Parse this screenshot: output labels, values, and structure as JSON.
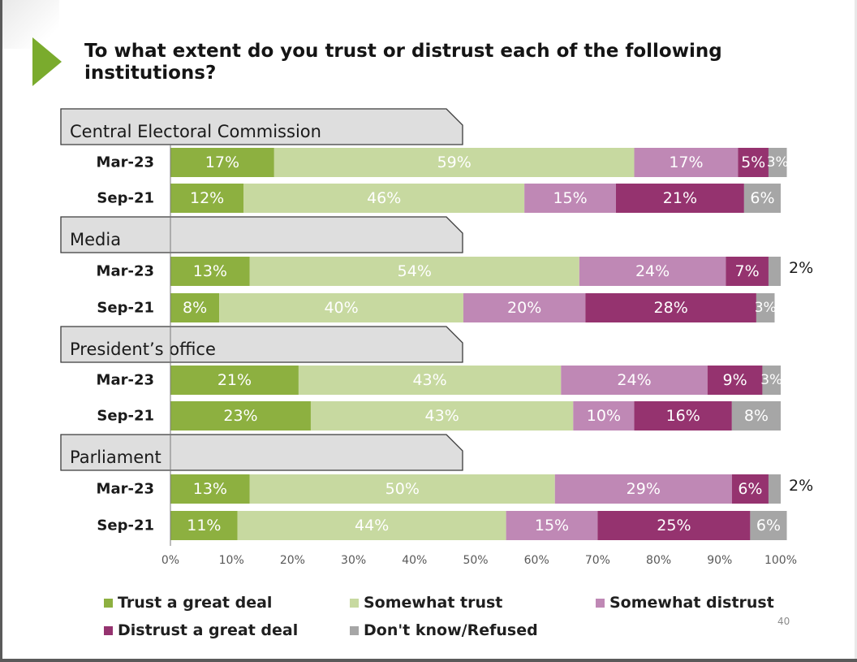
{
  "title": "To what extent do you trust or distrust each of the following institutions?",
  "page_number": "40",
  "colors": {
    "trust_great_deal": "#8db040",
    "somewhat_trust": "#c7d9a0",
    "somewhat_distrust": "#bf88b5",
    "distrust_great_deal": "#95336f",
    "dont_know": "#a6a6a6"
  },
  "chart_data": {
    "type": "bar",
    "orientation": "horizontal",
    "stacked": true,
    "xlim": [
      0,
      100
    ],
    "x_ticks": [
      "0%",
      "10%",
      "20%",
      "30%",
      "40%",
      "50%",
      "60%",
      "70%",
      "80%",
      "90%",
      "100%"
    ],
    "legend_placement": "bottom",
    "series": [
      {
        "name": "Trust a great deal",
        "color_key": "trust_great_deal"
      },
      {
        "name": "Somewhat trust",
        "color_key": "somewhat_trust"
      },
      {
        "name": "Somewhat distrust",
        "color_key": "somewhat_distrust"
      },
      {
        "name": "Distrust a great deal",
        "color_key": "distrust_great_deal"
      },
      {
        "name": "Don't know/Refused",
        "color_key": "dont_know"
      }
    ],
    "groups": [
      {
        "name": "Central Electoral Commission",
        "rows": [
          {
            "label": "Mar-23",
            "values": [
              17,
              59,
              17,
              5,
              3
            ],
            "labels": [
              "17%",
              "59%",
              "17%",
              "5%",
              "3%"
            ]
          },
          {
            "label": "Sep-21",
            "values": [
              12,
              46,
              15,
              21,
              6
            ],
            "labels": [
              "12%",
              "46%",
              "15%",
              "21%",
              "6%"
            ]
          }
        ]
      },
      {
        "name": "Media",
        "rows": [
          {
            "label": "Mar-23",
            "values": [
              13,
              54,
              24,
              7,
              2
            ],
            "labels": [
              "13%",
              "54%",
              "24%",
              "7%",
              "2%"
            ]
          },
          {
            "label": "Sep-21",
            "values": [
              8,
              40,
              20,
              28,
              3
            ],
            "labels": [
              "8%",
              "40%",
              "20%",
              "28%",
              "3%"
            ]
          }
        ]
      },
      {
        "name": "President’s office",
        "rows": [
          {
            "label": "Mar-23",
            "values": [
              21,
              43,
              24,
              9,
              3
            ],
            "labels": [
              "21%",
              "43%",
              "24%",
              "9%",
              "3%"
            ]
          },
          {
            "label": "Sep-21",
            "values": [
              23,
              43,
              10,
              16,
              8
            ],
            "labels": [
              "23%",
              "43%",
              "10%",
              "16%",
              "8%"
            ]
          }
        ]
      },
      {
        "name": "Parliament",
        "rows": [
          {
            "label": "Mar-23",
            "values": [
              13,
              50,
              29,
              6,
              2
            ],
            "labels": [
              "13%",
              "50%",
              "29%",
              "6%",
              "2%"
            ]
          },
          {
            "label": "Sep-21",
            "values": [
              11,
              44,
              15,
              25,
              6
            ],
            "labels": [
              "11%",
              "44%",
              "15%",
              "25%",
              "6%"
            ]
          }
        ]
      }
    ]
  }
}
